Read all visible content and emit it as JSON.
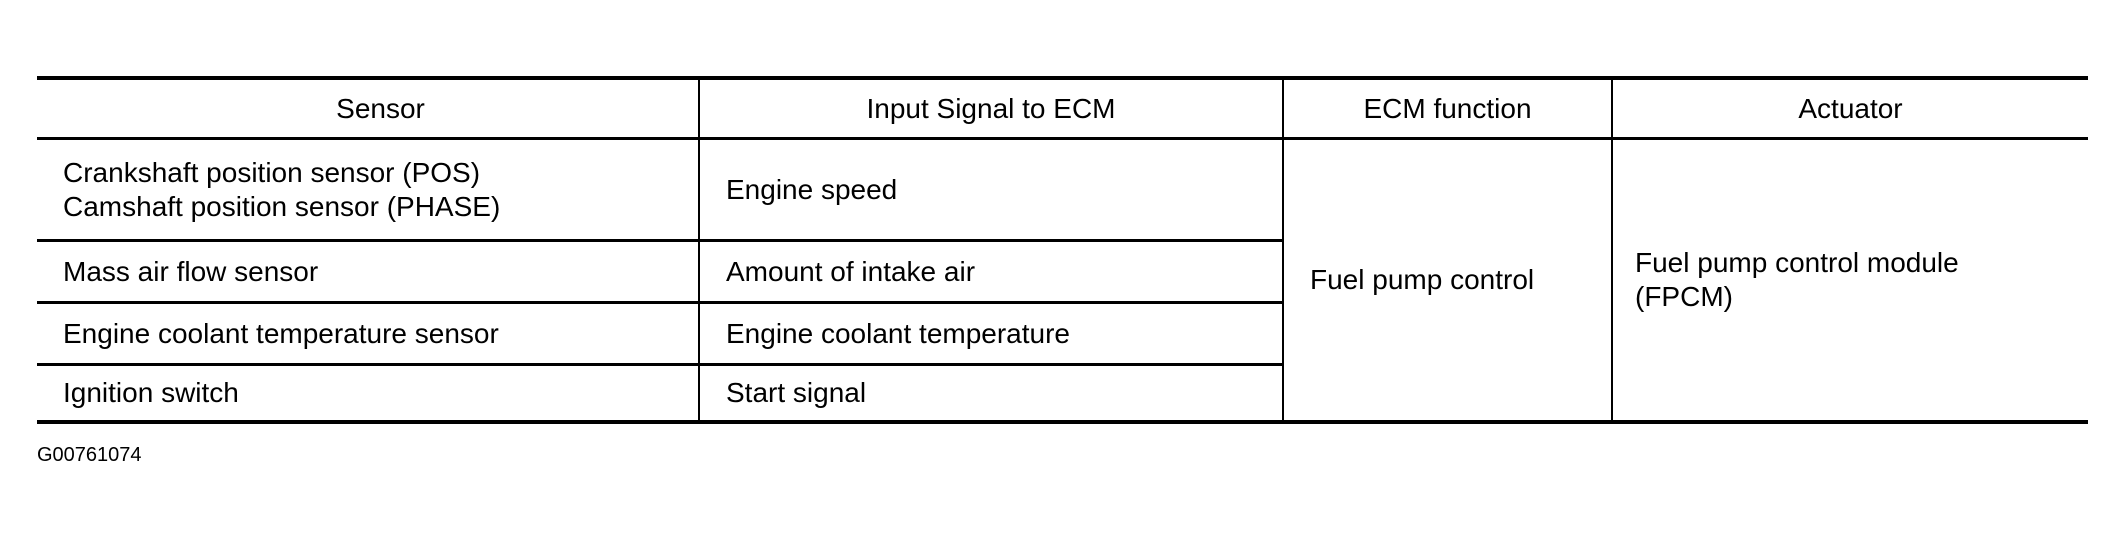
{
  "table": {
    "headers": [
      "Sensor",
      "Input Signal to ECM",
      "ECM function",
      "Actuator"
    ],
    "rows": [
      {
        "sensor": [
          "Crankshaft position sensor (POS)",
          "Camshaft position sensor (PHASE)"
        ],
        "input": "Engine speed"
      },
      {
        "sensor": [
          "Mass air flow sensor"
        ],
        "input": "Amount of intake air"
      },
      {
        "sensor": [
          "Engine coolant temperature sensor"
        ],
        "input": "Engine coolant temperature"
      },
      {
        "sensor": [
          "Ignition switch"
        ],
        "input": "Start signal"
      }
    ],
    "ecm_function": "Fuel pump control",
    "actuator": [
      "Fuel pump control module",
      "(FPCM)"
    ]
  },
  "figure_code": "G00761074"
}
